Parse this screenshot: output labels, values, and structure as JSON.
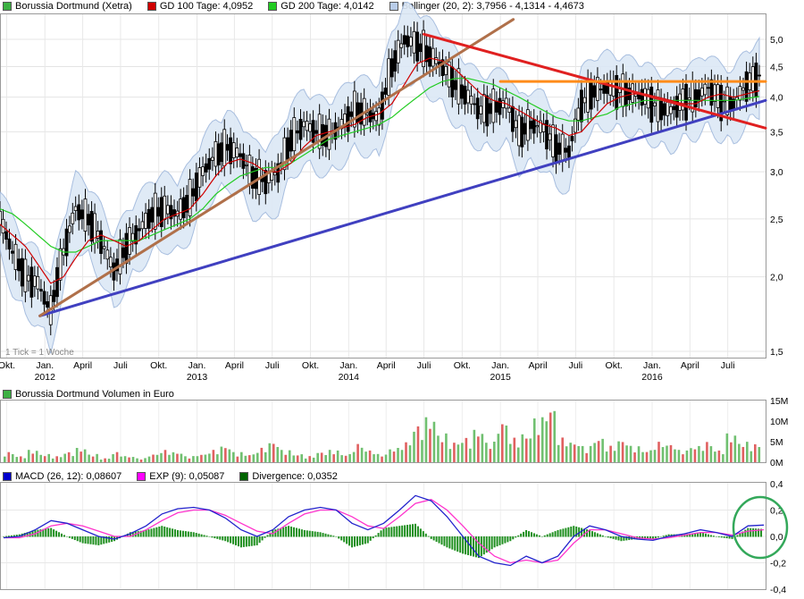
{
  "legend_price": [
    {
      "label": "Borussia Dortmund (Xetra)",
      "color": "#3cb043"
    },
    {
      "label": "GD 100 Tage: 4,0952",
      "color": "#d00000"
    },
    {
      "label": "GD 200 Tage: 4,0142",
      "color": "#22cc22"
    },
    {
      "label": "Bollinger (20, 2): 3,7956 - 4,1314 - 4,4673",
      "color": "#b8cce8"
    }
  ],
  "legend_volume": [
    {
      "label": "Borussia Dortmund Volumen in Euro",
      "color": "#3cb043"
    }
  ],
  "legend_macd": [
    {
      "label": "MACD (26, 12): 0,08607",
      "color": "#0000cc"
    },
    {
      "label": "EXP (9): 0,05087",
      "color": "#ff00ff"
    },
    {
      "label": "Divergence: 0,0352",
      "color": "#006400"
    }
  ],
  "note": "1 Tick = 1 Woche",
  "price_ticks": [
    "5,0",
    "4,5",
    "4,0",
    "3,5",
    "3,0",
    "2,5",
    "2,0",
    "1,5"
  ],
  "volume_ticks": [
    "15M",
    "10M",
    "5M",
    "0M"
  ],
  "macd_ticks": [
    "0,4",
    "0,2",
    "0,0",
    "-0,2",
    "-0,4"
  ],
  "month_labels": [
    "Okt.",
    "Jan.",
    "April",
    "Juli",
    "Okt.",
    "Jan.",
    "April",
    "Juli",
    "Okt.",
    "Jan.",
    "April",
    "Juli",
    "Okt.",
    "Jan.",
    "April",
    "Juli",
    "Okt.",
    "Jan.",
    "April",
    "Juli"
  ],
  "year_labels": [
    "2012",
    "2013",
    "2014",
    "2015",
    "2016"
  ],
  "chart_data": [
    {
      "type": "line",
      "title": "Borussia Dortmund (Xetra)",
      "yscale": "log",
      "ylim": [
        1.45,
        5.4
      ],
      "x_start": "2011-09-15",
      "x_end": "2016-09-30",
      "grid": true,
      "legend": "top",
      "series": [
        {
          "name": "Borussia Dortmund (Xetra)",
          "x": [
            "2011-09",
            "2011-10",
            "2011-11",
            "2011-12",
            "2012-01",
            "2012-02",
            "2012-03",
            "2012-04",
            "2012-05",
            "2012-06",
            "2012-07",
            "2012-08",
            "2012-09",
            "2012-10",
            "2012-11",
            "2012-12",
            "2013-01",
            "2013-02",
            "2013-03",
            "2013-04",
            "2013-05",
            "2013-06",
            "2013-07",
            "2013-08",
            "2013-09",
            "2013-10",
            "2013-11",
            "2013-12",
            "2014-01",
            "2014-02",
            "2014-03",
            "2014-04",
            "2014-05",
            "2014-06",
            "2014-07",
            "2014-08",
            "2014-09",
            "2014-10",
            "2014-11",
            "2014-12",
            "2015-01",
            "2015-02",
            "2015-03",
            "2015-04",
            "2015-05",
            "2015-06",
            "2015-07",
            "2015-08",
            "2015-09",
            "2015-10",
            "2015-11",
            "2015-12",
            "2016-01",
            "2016-02",
            "2016-03",
            "2016-04",
            "2016-05",
            "2016-06",
            "2016-07",
            "2016-08",
            "2016-09"
          ],
          "values": [
            2.5,
            2.2,
            2.0,
            1.95,
            1.75,
            2.2,
            2.6,
            2.5,
            2.3,
            2.05,
            2.25,
            2.4,
            2.55,
            2.6,
            2.55,
            2.7,
            3.0,
            3.2,
            3.3,
            3.2,
            2.95,
            2.9,
            3.0,
            3.4,
            3.6,
            3.5,
            3.45,
            3.6,
            3.8,
            3.75,
            3.7,
            4.5,
            5.0,
            4.9,
            4.7,
            4.5,
            4.2,
            4.0,
            3.8,
            3.85,
            3.9,
            3.5,
            3.6,
            3.55,
            3.3,
            3.25,
            3.9,
            4.1,
            4.15,
            4.1,
            4.05,
            4.0,
            3.85,
            3.8,
            3.95,
            4.0,
            4.15,
            3.95,
            3.9,
            4.2,
            4.35
          ]
        },
        {
          "name": "GD 100 Tage",
          "values": [
            2.45,
            2.35,
            2.25,
            2.1,
            1.95,
            2.0,
            2.15,
            2.3,
            2.35,
            2.3,
            2.25,
            2.3,
            2.4,
            2.5,
            2.55,
            2.6,
            2.75,
            2.95,
            3.1,
            3.15,
            3.1,
            3.0,
            3.0,
            3.1,
            3.3,
            3.45,
            3.5,
            3.55,
            3.6,
            3.7,
            3.75,
            3.9,
            4.2,
            4.55,
            4.65,
            4.6,
            4.45,
            4.25,
            4.05,
            3.95,
            3.9,
            3.8,
            3.7,
            3.6,
            3.55,
            3.45,
            3.5,
            3.7,
            3.9,
            4.0,
            4.05,
            4.05,
            4.0,
            3.95,
            3.9,
            3.9,
            4.0,
            4.05,
            4.0,
            4.05,
            4.1
          ]
        },
        {
          "name": "GD 200 Tage",
          "values": [
            2.6,
            2.55,
            2.45,
            2.35,
            2.25,
            2.2,
            2.2,
            2.25,
            2.3,
            2.3,
            2.3,
            2.3,
            2.35,
            2.4,
            2.45,
            2.5,
            2.6,
            2.75,
            2.85,
            2.95,
            3.0,
            3.05,
            3.05,
            3.1,
            3.2,
            3.3,
            3.4,
            3.45,
            3.5,
            3.55,
            3.6,
            3.7,
            3.85,
            4.0,
            4.15,
            4.25,
            4.3,
            4.3,
            4.25,
            4.2,
            4.1,
            4.0,
            3.9,
            3.8,
            3.7,
            3.65,
            3.65,
            3.7,
            3.75,
            3.85,
            3.9,
            3.95,
            3.95,
            3.95,
            3.95,
            3.95,
            3.95,
            3.95,
            3.95,
            3.98,
            4.01
          ]
        }
      ],
      "trendlines": [
        {
          "name": "blue support",
          "from": [
            "2011-12-20",
            1.72
          ],
          "to": [
            "2016-09-30",
            3.95
          ]
        },
        {
          "name": "brown trend",
          "from": [
            "2011-12-20",
            1.72
          ],
          "to": [
            "2015-02-01",
            5.4
          ]
        },
        {
          "name": "red resistance",
          "from": [
            "2014-07-01",
            5.1
          ],
          "to": [
            "2016-09-30",
            3.55
          ]
        },
        {
          "name": "orange resistance",
          "from": [
            "2015-01-01",
            4.25
          ],
          "to": [
            "2016-09-30",
            4.25
          ]
        }
      ]
    },
    {
      "type": "bar",
      "title": "Borussia Dortmund Volumen in Euro",
      "ylim": [
        0,
        15
      ],
      "unit": "M",
      "values": [
        2.5,
        1.5,
        3,
        2,
        1.5,
        2.5,
        3.5,
        2,
        1,
        2.5,
        1.5,
        1,
        2,
        3,
        2.5,
        1.5,
        2,
        3,
        4,
        2.5,
        2,
        3.5,
        5,
        3,
        2,
        1.5,
        2.5,
        3,
        2,
        4.5,
        3,
        2,
        3.5,
        5,
        9,
        11,
        7,
        5,
        6,
        8,
        5,
        10,
        6,
        7,
        11,
        13.5,
        6,
        5,
        4,
        6,
        4,
        5.5,
        4,
        3,
        5,
        4.5,
        3,
        4,
        5,
        3,
        7,
        5,
        4.5
      ]
    },
    {
      "type": "line",
      "title": "MACD",
      "ylim": [
        -0.4,
        0.4
      ],
      "series": [
        {
          "name": "MACD (26, 12)",
          "values": [
            -0.01,
            0.0,
            0.05,
            0.12,
            0.1,
            0.05,
            0.0,
            -0.02,
            0.02,
            0.08,
            0.17,
            0.21,
            0.22,
            0.2,
            0.14,
            0.05,
            0.0,
            0.05,
            0.15,
            0.2,
            0.22,
            0.2,
            0.1,
            0.05,
            0.1,
            0.2,
            0.31,
            0.27,
            0.15,
            0.0,
            -0.15,
            -0.2,
            -0.22,
            -0.15,
            -0.2,
            -0.15,
            0.0,
            0.08,
            0.05,
            0.0,
            -0.02,
            -0.03,
            0.0,
            0.02,
            0.05,
            0.03,
            0.0,
            0.08,
            0.086
          ]
        },
        {
          "name": "EXP (9)",
          "values": [
            -0.01,
            -0.01,
            0.02,
            0.08,
            0.1,
            0.08,
            0.04,
            0.0,
            0.0,
            0.05,
            0.12,
            0.18,
            0.2,
            0.2,
            0.16,
            0.1,
            0.04,
            0.02,
            0.1,
            0.17,
            0.2,
            0.2,
            0.15,
            0.08,
            0.06,
            0.15,
            0.25,
            0.28,
            0.2,
            0.08,
            -0.05,
            -0.15,
            -0.2,
            -0.18,
            -0.2,
            -0.18,
            -0.05,
            0.05,
            0.05,
            0.02,
            -0.01,
            -0.02,
            -0.01,
            0.01,
            0.03,
            0.03,
            0.01,
            0.04,
            0.051
          ]
        }
      ]
    }
  ]
}
